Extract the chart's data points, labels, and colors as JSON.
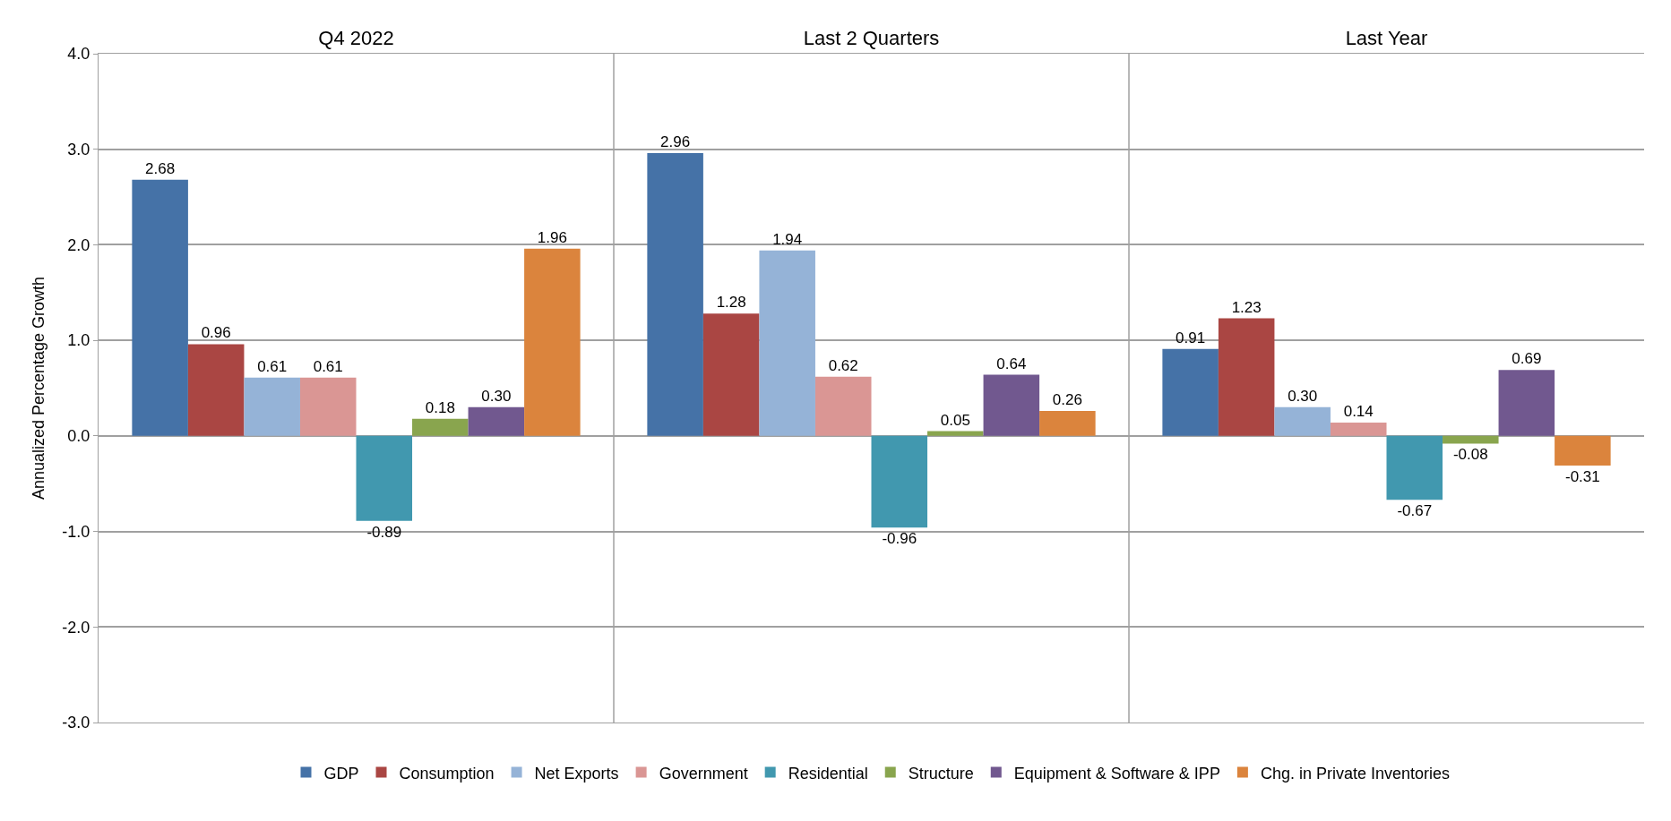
{
  "chart_data": {
    "type": "bar",
    "ylabel": "Annualized Percentage Growth",
    "categories": [
      "Q4 2022",
      "Last 2 Quarters",
      "Last Year"
    ],
    "series": [
      {
        "name": "GDP",
        "color": "#4572a7",
        "values": [
          2.68,
          2.96,
          0.91
        ],
        "value_labels": [
          "2.68",
          "2.96",
          "0.91"
        ]
      },
      {
        "name": "Consumption",
        "color": "#aa4643",
        "values": [
          0.96,
          1.28,
          1.23
        ],
        "value_labels": [
          "0.96",
          "1.28",
          "1.23"
        ]
      },
      {
        "name": "Net Exports",
        "color": "#95b3d7",
        "values": [
          0.61,
          1.94,
          0.3
        ],
        "value_labels": [
          "0.61",
          "1.94",
          "0.30"
        ]
      },
      {
        "name": "Government",
        "color": "#da9694",
        "values": [
          0.61,
          0.62,
          0.14
        ],
        "value_labels": [
          "0.61",
          "0.62",
          "0.14"
        ]
      },
      {
        "name": "Residential",
        "color": "#4198af",
        "values": [
          -0.89,
          -0.96,
          -0.67
        ],
        "value_labels": [
          "-0.89",
          "-0.96",
          "-0.67"
        ]
      },
      {
        "name": "Structure",
        "color": "#89a54e",
        "values": [
          0.18,
          0.05,
          -0.08
        ],
        "value_labels": [
          "0.18",
          "0.05",
          "-0.08"
        ]
      },
      {
        "name": "Equipment & Software & IPP",
        "color": "#71588f",
        "values": [
          0.3,
          0.64,
          0.69
        ],
        "value_labels": [
          "0.30",
          "0.64",
          "0.69"
        ]
      },
      {
        "name": "Chg. in Private Inventories",
        "color": "#db843d",
        "values": [
          1.96,
          0.26,
          -0.31
        ],
        "value_labels": [
          "1.96",
          "0.26",
          "-0.31"
        ]
      }
    ],
    "ylim": [
      -3,
      4
    ],
    "yticks": [
      {
        "value": -3,
        "label": "-3.0"
      },
      {
        "value": -2,
        "label": "-2.0"
      },
      {
        "value": -1,
        "label": "-1.0"
      },
      {
        "value": 0,
        "label": "0.0"
      },
      {
        "value": 1,
        "label": "1.0"
      },
      {
        "value": 2,
        "label": "2.0"
      },
      {
        "value": 3,
        "label": "3.0"
      },
      {
        "value": 4,
        "label": "4.0"
      }
    ],
    "grid": true,
    "legend": "bottom"
  }
}
